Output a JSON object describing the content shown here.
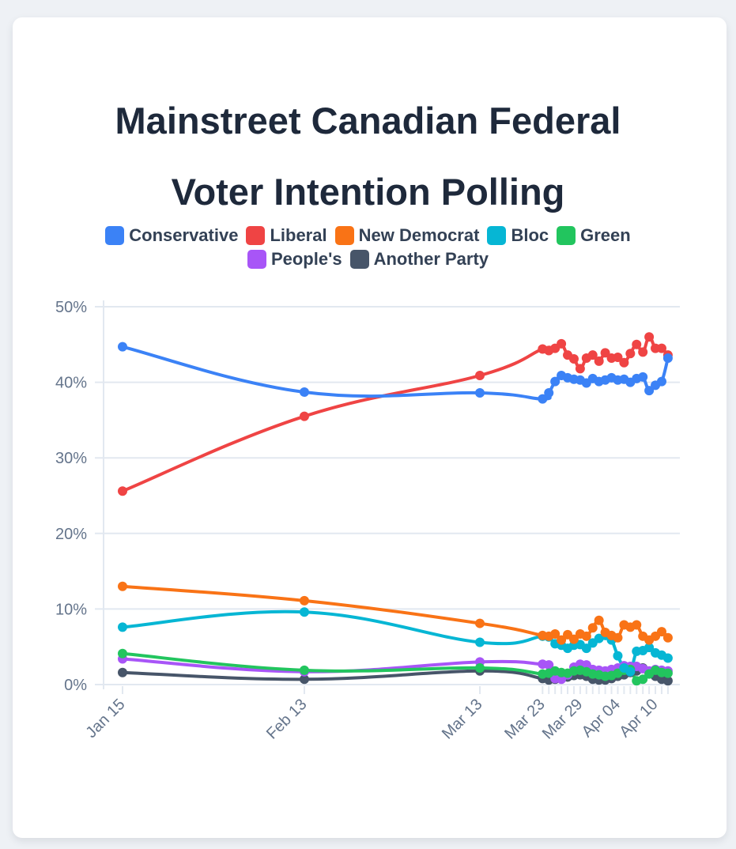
{
  "chart_data": {
    "type": "line",
    "title": "Mainstreet Canadian Federal Voter Intention Polling",
    "title_lines": [
      "Mainstreet Canadian Federal",
      "Voter Intention Polling"
    ],
    "xlabel": "",
    "ylabel": "",
    "ylim": [
      0,
      50
    ],
    "y_ticks": [
      "0%",
      "10%",
      "20%",
      "30%",
      "40%",
      "50%"
    ],
    "y_tick_values": [
      0,
      10,
      20,
      30,
      40,
      50
    ],
    "x_tick_labels": [
      "Jan 15",
      "Feb 13",
      "Mar 13",
      "Mar 23",
      "Mar 29",
      "Apr 04",
      "Apr 10"
    ],
    "x_tick_days": [
      0,
      29,
      57,
      67,
      73,
      79,
      85
    ],
    "grid": true,
    "legend_position": "top",
    "x_days": [
      0,
      29,
      57,
      67,
      68,
      69,
      70,
      71,
      72,
      73,
      74,
      75,
      76,
      77,
      78,
      79,
      80,
      81,
      82,
      83,
      84,
      85,
      86,
      87
    ],
    "x": [
      "Jan 15",
      "Feb 13",
      "Mar 13",
      "Mar 23",
      "Mar 24",
      "Mar 25",
      "Mar 26",
      "Mar 27",
      "Mar 28",
      "Mar 29",
      "Mar 30",
      "Mar 31",
      "Apr 01",
      "Apr 02",
      "Apr 03",
      "Apr 04",
      "Apr 05",
      "Apr 06",
      "Apr 07",
      "Apr 08",
      "Apr 09",
      "Apr 10",
      "Apr 11",
      "Apr 12"
    ],
    "series": [
      {
        "name": "Conservative",
        "color": "#3b82f6",
        "values": [
          44.7,
          38.7,
          38.6,
          37.8,
          38.6,
          40.1,
          40.9,
          40.6,
          40.4,
          40.3,
          39.9,
          40.5,
          40.1,
          40.3,
          40.6,
          40.3,
          40.4,
          40.0,
          40.5,
          40.7,
          38.9,
          39.6,
          40.1,
          43.2
        ]
      },
      {
        "name": "Liberal",
        "color": "#ef4444",
        "values": [
          25.6,
          35.5,
          40.9,
          44.4,
          44.2,
          44.5,
          45.1,
          43.6,
          43.1,
          41.8,
          43.2,
          43.6,
          42.8,
          43.9,
          43.2,
          43.3,
          42.6,
          43.8,
          45.0,
          44.0,
          46.0,
          44.5,
          44.5,
          43.6
        ]
      },
      {
        "name": "New Democrat",
        "color": "#f97316",
        "values": [
          13.0,
          11.1,
          8.1,
          6.5,
          6.4,
          6.7,
          5.9,
          6.6,
          6.0,
          6.7,
          6.4,
          7.5,
          8.5,
          6.9,
          6.5,
          6.2,
          7.9,
          7.6,
          7.9,
          6.4,
          5.9,
          6.4,
          7.0,
          6.2
        ]
      },
      {
        "name": "Bloc",
        "color": "#06b6d4",
        "values": [
          7.6,
          9.6,
          5.6,
          6.4,
          6.3,
          5.4,
          5.2,
          4.8,
          5.2,
          5.3,
          4.8,
          5.5,
          6.1,
          6.5,
          5.9,
          3.8,
          2.2,
          1.7,
          4.4,
          4.5,
          4.9,
          4.2,
          3.9,
          3.5
        ]
      },
      {
        "name": "Green",
        "color": "#22c55e",
        "values": [
          4.1,
          1.9,
          2.2,
          1.4,
          1.5,
          1.8,
          1.6,
          1.5,
          1.8,
          1.9,
          1.7,
          1.4,
          1.3,
          1.1,
          1.2,
          1.5,
          1.9,
          2.0,
          0.5,
          0.7,
          1.4,
          1.9,
          1.6,
          1.5
        ]
      },
      {
        "name": "People's",
        "color": "#a855f7",
        "values": [
          3.4,
          1.7,
          3.0,
          2.7,
          2.6,
          0.8,
          0.7,
          1.3,
          2.3,
          2.7,
          2.6,
          2.0,
          1.9,
          1.8,
          2.0,
          2.2,
          2.5,
          2.4,
          2.4,
          2.1,
          1.8,
          2.0,
          1.9,
          1.8
        ]
      },
      {
        "name": "Another Party",
        "color": "#475569",
        "values": [
          1.6,
          0.7,
          1.8,
          0.8,
          0.6,
          0.7,
          0.9,
          1.0,
          1.2,
          1.3,
          1.1,
          0.7,
          0.6,
          0.6,
          0.8,
          1.1,
          1.3,
          1.6,
          1.8,
          2.2,
          1.6,
          1.1,
          0.7,
          0.5
        ]
      }
    ]
  }
}
